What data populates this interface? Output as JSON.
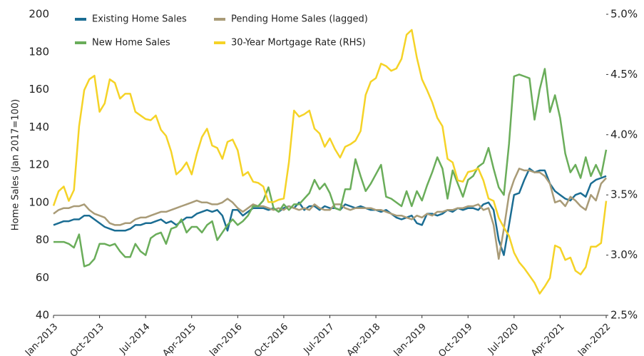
{
  "chart_data": {
    "type": "line",
    "y_label": "Home Sales (Jan 2017=100)",
    "categories": [
      "Jan-2013",
      null,
      null,
      null,
      null,
      null,
      null,
      null,
      null,
      "Oct-2013",
      null,
      null,
      null,
      null,
      null,
      null,
      null,
      null,
      "Jul-2014",
      null,
      null,
      null,
      null,
      null,
      null,
      null,
      null,
      "Apr-2015",
      null,
      null,
      null,
      null,
      null,
      null,
      null,
      null,
      "Jan-2016",
      null,
      null,
      null,
      null,
      null,
      null,
      null,
      null,
      "Oct-2016",
      null,
      null,
      null,
      null,
      null,
      null,
      null,
      null,
      "Jul-2017",
      null,
      null,
      null,
      null,
      null,
      null,
      null,
      null,
      "Apr-2018",
      null,
      null,
      null,
      null,
      null,
      null,
      null,
      null,
      "Jan-2019",
      null,
      null,
      null,
      null,
      null,
      null,
      null,
      null,
      "Oct-2019",
      null,
      null,
      null,
      null,
      null,
      null,
      null,
      null,
      "Jul-2020",
      null,
      null,
      null,
      null,
      null,
      null,
      null,
      null,
      "Apr-2021",
      null,
      null,
      null,
      null,
      null,
      null,
      null,
      null,
      "Jan-2022"
    ],
    "series": [
      {
        "name": "Existing Home Sales",
        "color": "#1b6d93",
        "values": [
          88,
          89,
          90,
          90,
          91,
          91,
          93,
          93,
          91,
          89,
          87,
          86,
          85,
          85,
          85,
          86,
          88,
          88,
          89,
          89,
          90,
          91,
          89,
          90,
          88,
          90,
          92,
          92,
          94,
          95,
          96,
          95,
          96,
          93,
          85,
          96,
          96,
          93,
          95,
          97,
          97,
          97,
          96,
          97,
          95,
          97,
          98,
          97,
          100,
          96,
          98,
          98,
          96,
          98,
          97,
          97,
          96,
          99,
          98,
          97,
          98,
          97,
          96,
          96,
          95,
          96,
          94,
          92,
          91,
          92,
          93,
          89,
          88,
          94,
          94,
          93,
          94,
          96,
          95,
          97,
          96,
          97,
          97,
          96,
          99,
          100,
          96,
          80,
          72,
          88,
          104,
          105,
          112,
          118,
          116,
          117,
          117,
          110,
          106,
          104,
          102,
          101,
          104,
          105,
          103,
          110,
          112,
          113,
          114
        ]
      },
      {
        "name": "Pending Home Sales (lagged)",
        "color": "#a99b77",
        "values": [
          94,
          96,
          97,
          97,
          98,
          98,
          99,
          96,
          94,
          93,
          92,
          89,
          88,
          88,
          89,
          89,
          91,
          92,
          92,
          93,
          94,
          95,
          95,
          96,
          97,
          98,
          99,
          100,
          101,
          100,
          100,
          99,
          99,
          100,
          102,
          100,
          97,
          95,
          97,
          99,
          98,
          98,
          97,
          96,
          97,
          96,
          98,
          97,
          96,
          97,
          96,
          99,
          97,
          96,
          96,
          99,
          99,
          97,
          96,
          97,
          97,
          97,
          97,
          96,
          96,
          95,
          94,
          93,
          93,
          92,
          91,
          93,
          92,
          94,
          93,
          95,
          95,
          96,
          96,
          97,
          97,
          98,
          98,
          99,
          96,
          97,
          88,
          70,
          86,
          104,
          112,
          118,
          117,
          117,
          116,
          116,
          114,
          110,
          100,
          101,
          98,
          103,
          101,
          98,
          96,
          104,
          101,
          110,
          113
        ]
      },
      {
        "name": "New Home Sales",
        "color": "#6aad5a",
        "values": [
          79,
          79,
          79,
          78,
          76,
          83,
          66,
          67,
          70,
          78,
          78,
          77,
          78,
          74,
          71,
          71,
          78,
          74,
          72,
          81,
          83,
          84,
          78,
          86,
          87,
          91,
          84,
          87,
          87,
          84,
          88,
          90,
          80,
          84,
          88,
          91,
          88,
          90,
          93,
          98,
          98,
          101,
          108,
          97,
          95,
          99,
          96,
          99,
          99,
          102,
          105,
          112,
          107,
          110,
          105,
          97,
          96,
          107,
          107,
          123,
          114,
          106,
          110,
          115,
          120,
          103,
          102,
          100,
          98,
          106,
          98,
          106,
          101,
          109,
          116,
          124,
          118,
          102,
          117,
          110,
          103,
          112,
          114,
          119,
          121,
          129,
          118,
          108,
          104,
          131,
          167,
          168,
          167,
          166,
          144,
          160,
          171,
          148,
          157,
          145,
          126,
          116,
          120,
          113,
          124,
          114,
          120,
          114,
          128
        ]
      },
      {
        "name": "30-Year Mortgage Rate (RHS)",
        "color": "#f5d327",
        "axis": "y2",
        "values": [
          3.41,
          3.53,
          3.57,
          3.45,
          3.54,
          4.07,
          4.37,
          4.46,
          4.49,
          4.19,
          4.26,
          4.46,
          4.43,
          4.3,
          4.34,
          4.34,
          4.19,
          4.16,
          4.13,
          4.12,
          4.16,
          4.04,
          3.99,
          3.86,
          3.67,
          3.71,
          3.77,
          3.67,
          3.84,
          3.98,
          4.05,
          3.91,
          3.89,
          3.8,
          3.94,
          3.96,
          3.87,
          3.66,
          3.69,
          3.61,
          3.6,
          3.57,
          3.44,
          3.44,
          3.46,
          3.47,
          3.77,
          4.2,
          4.15,
          4.17,
          4.2,
          4.05,
          4.01,
          3.9,
          3.97,
          3.88,
          3.81,
          3.9,
          3.92,
          3.95,
          4.03,
          4.33,
          4.44,
          4.47,
          4.59,
          4.57,
          4.53,
          4.55,
          4.63,
          4.83,
          4.87,
          4.64,
          4.46,
          4.37,
          4.27,
          4.14,
          4.07,
          3.8,
          3.77,
          3.62,
          3.61,
          3.69,
          3.7,
          3.72,
          3.62,
          3.47,
          3.45,
          3.31,
          3.23,
          3.16,
          3.02,
          2.94,
          2.89,
          2.83,
          2.77,
          2.68,
          2.74,
          2.81,
          3.08,
          3.06,
          2.96,
          2.98,
          2.87,
          2.84,
          2.9,
          3.07,
          3.07,
          3.1,
          3.45
        ]
      }
    ],
    "ylim": [
      40,
      200
    ],
    "yticks": [
      40,
      60,
      80,
      100,
      120,
      140,
      160,
      180,
      200
    ],
    "y2lim": [
      2.5,
      5.0
    ],
    "y2ticks": [
      {
        "value": 2.5,
        "label": "2.5%"
      },
      {
        "value": 3.0,
        "label": "3.0%"
      },
      {
        "value": 3.5,
        "label": "3.5%"
      },
      {
        "value": 4.0,
        "label": "4.0%"
      },
      {
        "value": 4.5,
        "label": "4.5%"
      },
      {
        "value": 5.0,
        "label": "5.0%"
      }
    ],
    "grid": false,
    "legend": "top-left"
  }
}
